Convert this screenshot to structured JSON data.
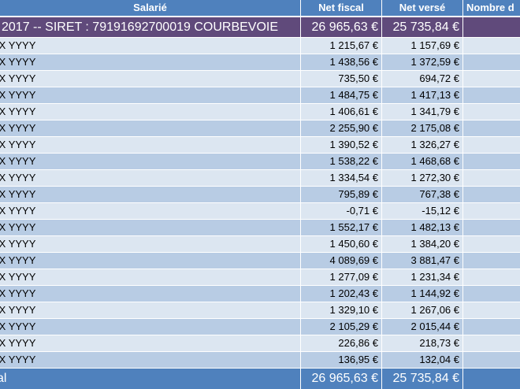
{
  "header": {
    "col_employee": "Salarié",
    "col_net_fiscal": "Net fiscal",
    "col_net_verse": "Net versé",
    "col_nombre": "Nombre d"
  },
  "group": {
    "label": "2017 --  SIRET : 79191692700019 COURBEVOIE",
    "net_fiscal": "26 965,63 €",
    "net_verse": "25 735,84 €",
    "nombre": ""
  },
  "rows": [
    {
      "name": "XX YYYY",
      "net_fiscal": "1 215,67 €",
      "net_verse": "1 157,69 €"
    },
    {
      "name": "XX YYYY",
      "net_fiscal": "1 438,56 €",
      "net_verse": "1 372,59 €"
    },
    {
      "name": "XX YYYY",
      "net_fiscal": "735,50 €",
      "net_verse": "694,72 €"
    },
    {
      "name": "XX YYYY",
      "net_fiscal": "1 484,75 €",
      "net_verse": "1 417,13 €"
    },
    {
      "name": "XX YYYY",
      "net_fiscal": "1 406,61 €",
      "net_verse": "1 341,79 €"
    },
    {
      "name": "XX YYYY",
      "net_fiscal": "2 255,90 €",
      "net_verse": "2 175,08 €"
    },
    {
      "name": "XX YYYY",
      "net_fiscal": "1 390,52 €",
      "net_verse": "1 326,27 €"
    },
    {
      "name": "XX YYYY",
      "net_fiscal": "1 538,22 €",
      "net_verse": "1 468,68 €"
    },
    {
      "name": "XX YYYY",
      "net_fiscal": "1 334,54 €",
      "net_verse": "1 272,30 €"
    },
    {
      "name": "XX YYYY",
      "net_fiscal": "795,89 €",
      "net_verse": "767,38 €"
    },
    {
      "name": "XX YYYY",
      "net_fiscal": "-0,71 €",
      "net_verse": "-15,12 €"
    },
    {
      "name": "XX YYYY",
      "net_fiscal": "1 552,17 €",
      "net_verse": "1 482,13 €"
    },
    {
      "name": "XX YYYY",
      "net_fiscal": "1 450,60 €",
      "net_verse": "1 384,20 €"
    },
    {
      "name": "XX YYYY",
      "net_fiscal": "4 089,69 €",
      "net_verse": "3 881,47 €"
    },
    {
      "name": "XX YYYY",
      "net_fiscal": "1 277,09 €",
      "net_verse": "1 231,34 €"
    },
    {
      "name": "XX YYYY",
      "net_fiscal": "1 202,43 €",
      "net_verse": "1 144,92 €"
    },
    {
      "name": "XX YYYY",
      "net_fiscal": "1 329,10 €",
      "net_verse": "1 267,06 €"
    },
    {
      "name": "XX YYYY",
      "net_fiscal": "2 105,29 €",
      "net_verse": "2 015,44 €"
    },
    {
      "name": "XX YYYY",
      "net_fiscal": "226,86 €",
      "net_verse": "218,73 €"
    },
    {
      "name": "XX YYYY",
      "net_fiscal": "136,95 €",
      "net_verse": "132,04 €"
    }
  ],
  "total": {
    "label": "al",
    "net_fiscal": "26 965,63 €",
    "net_verse": "25 735,84 €",
    "nombre": ""
  },
  "colors": {
    "header_bg": "#4f81bd",
    "group_bg": "#604a7b",
    "row_light": "#dce6f1",
    "row_dark": "#b8cce4",
    "total_bg": "#4f81bd"
  }
}
